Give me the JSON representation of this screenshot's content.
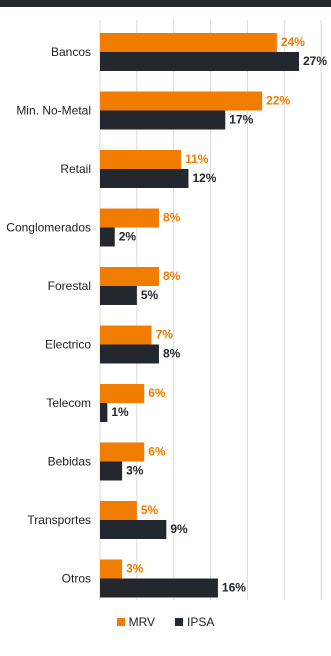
{
  "colors": {
    "top_bar": "#23282e",
    "mrv": "#f07c00",
    "ipsa": "#23282e",
    "grid": "#d9d9d9"
  },
  "chart_data": {
    "type": "bar",
    "orientation": "horizontal",
    "title": "",
    "xlabel": "",
    "ylabel": "",
    "xlim": [
      0,
      30
    ],
    "grid": true,
    "legend_position": "bottom-center",
    "categories": [
      "Bancos",
      "Min. No-Metal",
      "Retail",
      "Conglomerados",
      "Forestal",
      "Electrico",
      "Telecom",
      "Bebidas",
      "Transportes",
      "Otros"
    ],
    "series": [
      {
        "name": "MRV",
        "values": [
          24,
          22,
          11,
          8,
          8,
          7,
          6,
          6,
          5,
          3
        ],
        "labels": [
          "24%",
          "22%",
          "11%",
          "8%",
          "8%",
          "7%",
          "6%",
          "6%",
          "5%",
          "3%"
        ]
      },
      {
        "name": "IPSA",
        "values": [
          27,
          17,
          12,
          2,
          5,
          8,
          1,
          3,
          9,
          16
        ],
        "labels": [
          "27%",
          "17%",
          "12%",
          "2%",
          "5%",
          "8%",
          "1%",
          "3%",
          "9%",
          "16%"
        ]
      }
    ]
  }
}
